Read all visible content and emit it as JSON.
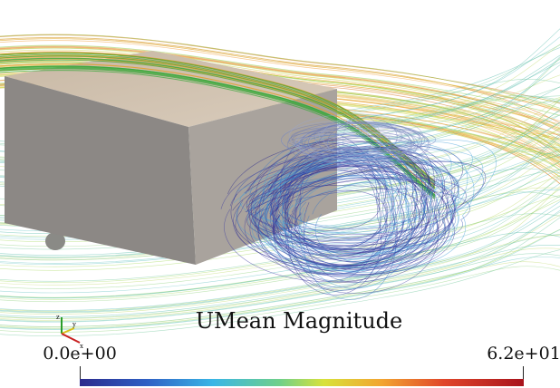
{
  "colorbar": {
    "title": "UMean Magnitude",
    "min_label": "0.0e+00",
    "max_label": "6.2e+01"
  },
  "axes_triad": {
    "z": "z",
    "y": "y",
    "x": "x"
  }
}
